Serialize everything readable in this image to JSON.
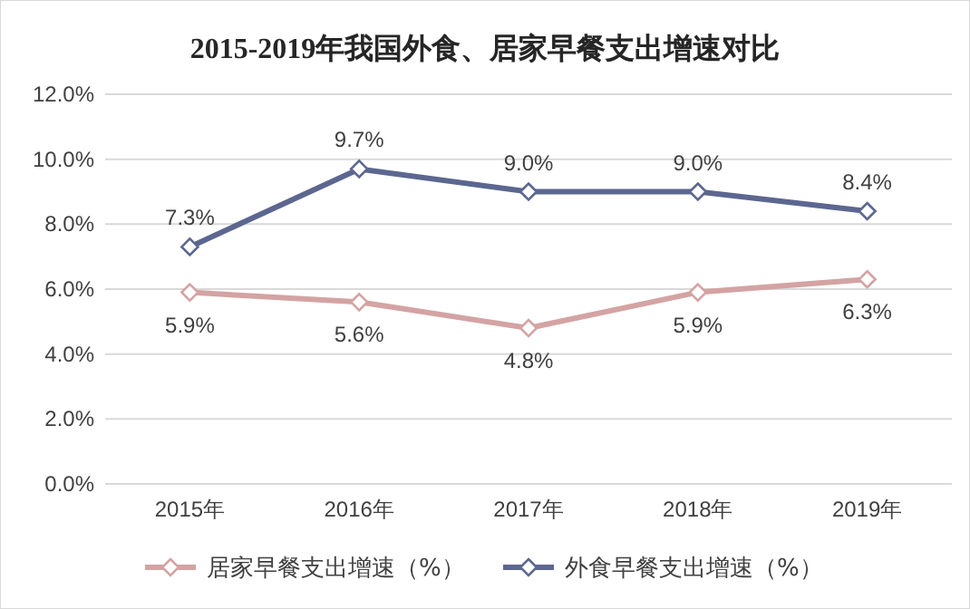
{
  "chart_data": {
    "type": "line",
    "title": "2015-2019年我国外食、居家早餐支出增速对比",
    "categories": [
      "2015年",
      "2016年",
      "2017年",
      "2018年",
      "2019年"
    ],
    "series": [
      {
        "name": "居家早餐支出增速（%）",
        "color": "#d4a3a3",
        "values": [
          5.9,
          5.6,
          4.8,
          5.9,
          6.3
        ],
        "value_labels": [
          "5.9%",
          "5.6%",
          "4.8%",
          "5.9%",
          "6.3%"
        ]
      },
      {
        "name": "外食早餐支出增速（%）",
        "color": "#5c6790",
        "values": [
          7.3,
          9.7,
          9.0,
          9.0,
          8.4
        ],
        "value_labels": [
          "7.3%",
          "9.7%",
          "9.0%",
          "9.0%",
          "8.4%"
        ]
      }
    ],
    "ylim": [
      0,
      12
    ],
    "yticks": [
      {
        "value": 0,
        "label": "0.0%"
      },
      {
        "value": 2,
        "label": "2.0%"
      },
      {
        "value": 4,
        "label": "4.0%"
      },
      {
        "value": 6,
        "label": "6.0%"
      },
      {
        "value": 8,
        "label": "8.0%"
      },
      {
        "value": 10,
        "label": "10.0%"
      },
      {
        "value": 12,
        "label": "12.0%"
      }
    ],
    "grid": "y",
    "legend": "bottom",
    "marker": "diamond",
    "line_style": "solid"
  }
}
